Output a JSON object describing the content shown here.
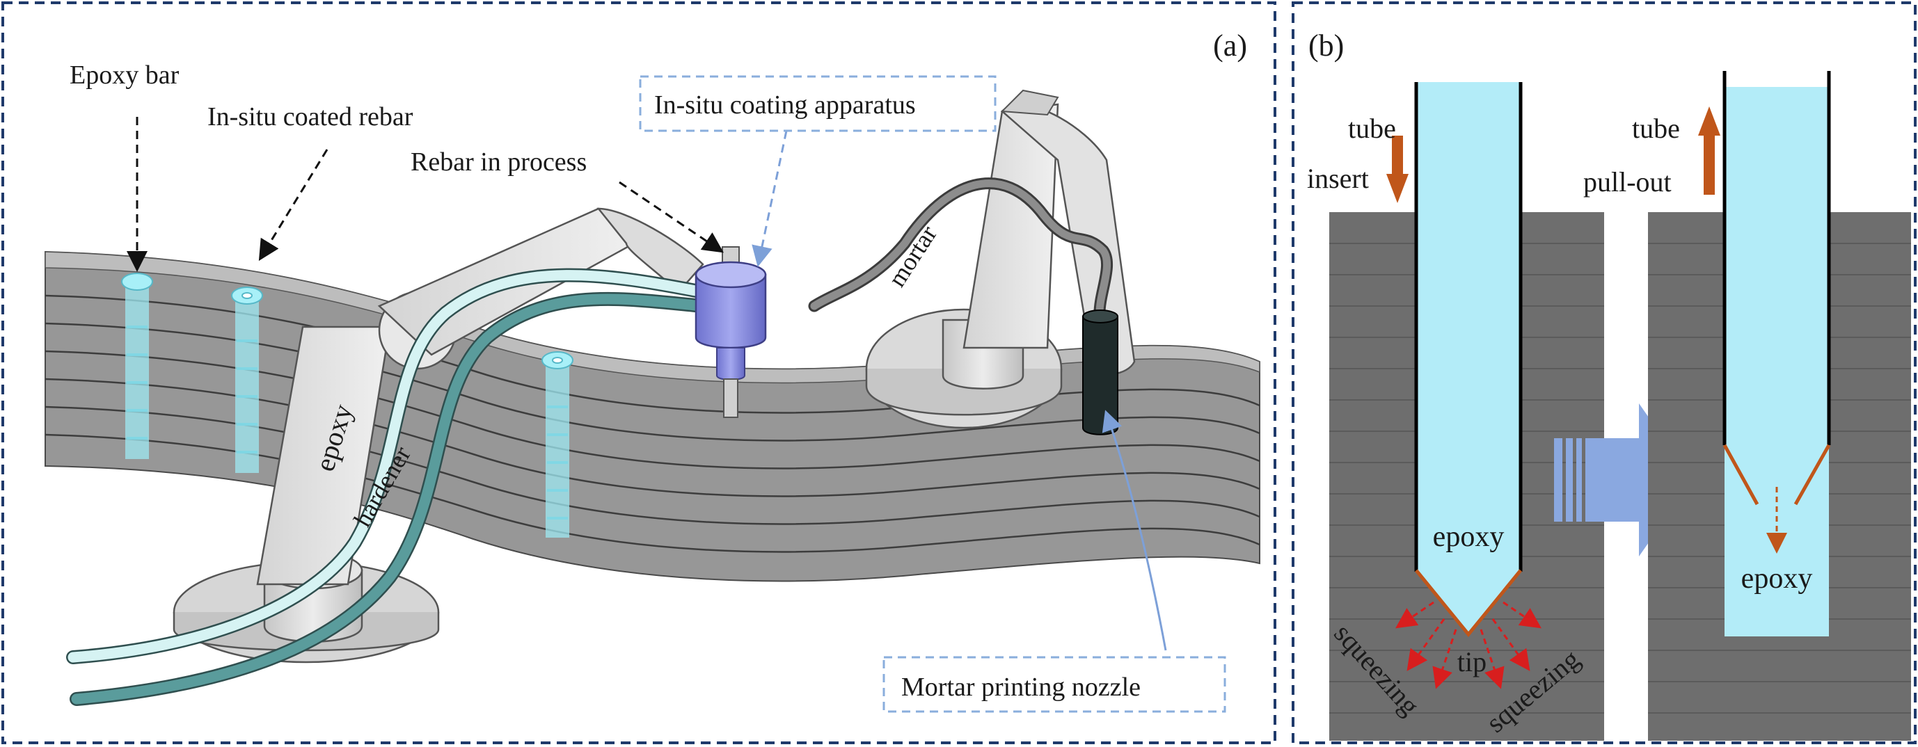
{
  "panels": {
    "a": {
      "tag": "(a)",
      "labels": {
        "epoxy_bar": "Epoxy bar",
        "coated_rebar": "In-situ coated rebar",
        "rebar_in_process": "Rebar in process",
        "coating_apparatus": "In-situ coating apparatus",
        "mortar": "mortar",
        "epoxy": "epoxy",
        "hardener": "hardener",
        "nozzle": "Mortar printing nozzle"
      }
    },
    "b": {
      "tag": "(b)",
      "labels": {
        "tube_left": "tube",
        "insert": "insert",
        "tube_right": "tube",
        "pull_out": "pull-out",
        "epoxy_left": "epoxy",
        "epoxy_right": "epoxy",
        "tip": "tip",
        "squeezing_left": "squeezing",
        "squeezing_right": "squeezing"
      }
    }
  },
  "colors": {
    "frame": "#1f3a6b",
    "printed_layers": "#8c8c8c",
    "wall": "#6e6e6e",
    "epoxy_fill": "#b3ecf8",
    "arrow_orange": "#c0561a",
    "arrow_red": "#d81e1e",
    "apparatus": "#8a8ee0",
    "nozzle": "#1f2b2b",
    "tube_epoxy": "#d6f3f3",
    "tube_hardener": "#5a9c9c",
    "process_arrow": "#8aa8e0"
  }
}
